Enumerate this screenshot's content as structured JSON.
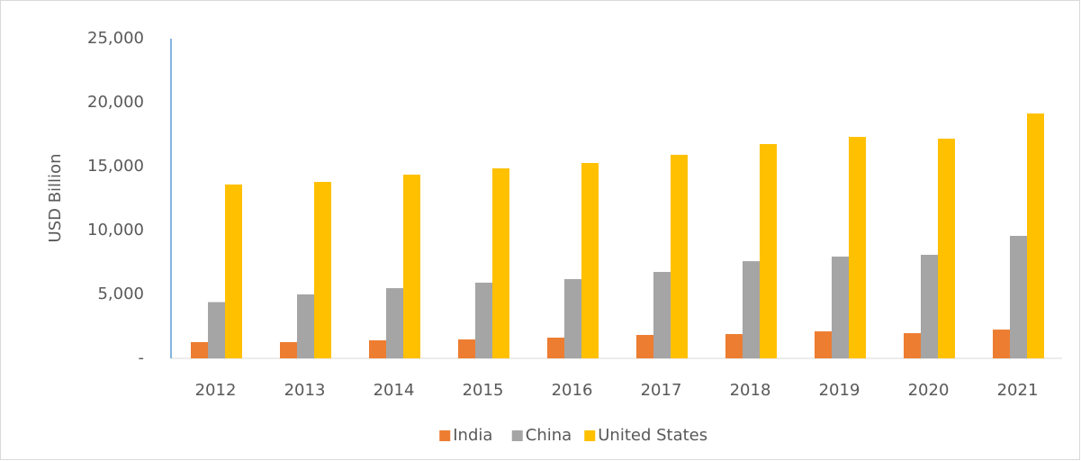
{
  "chart_data": {
    "type": "bar",
    "y_label": "USD Billion",
    "categories": [
      "2012",
      "2013",
      "2014",
      "2015",
      "2016",
      "2017",
      "2018",
      "2019",
      "2020",
      "2021"
    ],
    "series": [
      {
        "name": "India",
        "color": "#ed7d31",
        "values": [
          1270,
          1270,
          1410,
          1480,
          1620,
          1830,
          1900,
          2110,
          1970,
          2250
        ]
      },
      {
        "name": "China",
        "color": "#a5a5a5",
        "values": [
          4400,
          5000,
          5490,
          5920,
          6200,
          6760,
          7600,
          7960,
          8100,
          9580
        ]
      },
      {
        "name": "United States",
        "color": "#ffc000",
        "values": [
          13600,
          13800,
          14370,
          14860,
          15280,
          15920,
          16760,
          17320,
          17180,
          19150
        ]
      }
    ],
    "ylim": [
      0,
      25000
    ],
    "yticks": [
      {
        "value": 0,
        "label": "-"
      },
      {
        "value": 5000,
        "label": "5,000"
      },
      {
        "value": 10000,
        "label": "10,000"
      },
      {
        "value": 15000,
        "label": "15,000"
      },
      {
        "value": 20000,
        "label": "20,000"
      },
      {
        "value": 25000,
        "label": "25,000"
      }
    ],
    "legend": "bottom"
  }
}
